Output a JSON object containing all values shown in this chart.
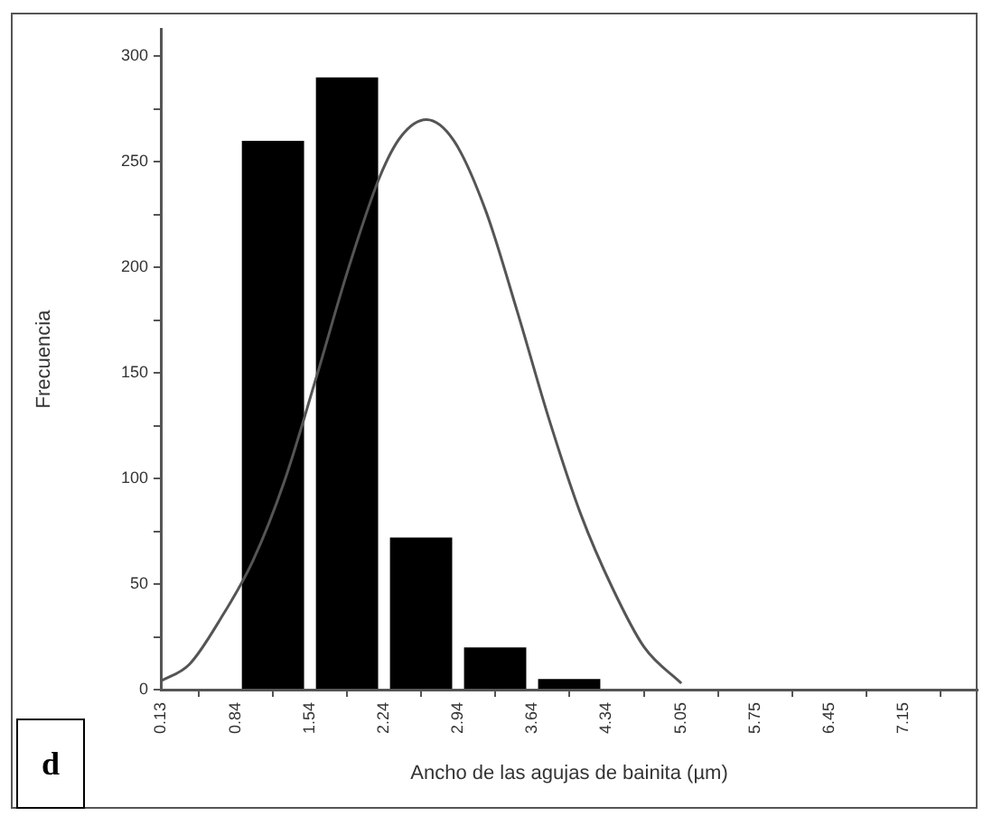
{
  "chart_data": {
    "type": "histogram",
    "xlabel": "Ancho de las agujas de bainita (µm)",
    "ylabel": "Frecuencia",
    "annotations": [
      "d"
    ],
    "series": [
      {
        "bins": [
          0.84,
          1.54,
          2.24,
          2.94,
          3.64,
          4.34
        ],
        "values": [
          260,
          290,
          72,
          20,
          5
        ],
        "color": "#000000"
      },
      {
        "type": "line",
        "color": "#555555",
        "x": [
          0.13,
          0.4,
          0.7,
          1.0,
          1.3,
          1.6,
          1.9,
          2.2,
          2.4,
          2.64,
          2.9,
          3.2,
          3.5,
          3.8,
          4.1,
          4.4,
          4.7,
          5.05
        ],
        "values": [
          4,
          12,
          34,
          61,
          99,
          148,
          199,
          243,
          262,
          270,
          260,
          227,
          179,
          128,
          83,
          48,
          20,
          3
        ]
      }
    ],
    "xlim": [
      0.13,
      7.85
    ],
    "xticks": [
      0.13,
      0.84,
      1.54,
      2.24,
      2.94,
      3.64,
      4.34,
      5.05,
      5.75,
      6.45,
      7.15
    ],
    "ylim": [
      0,
      313
    ],
    "yticks": [
      0,
      {
        "value": 25,
        "label": null
      },
      50,
      {
        "value": 75,
        "label": null
      },
      100,
      {
        "value": 125,
        "label": null
      },
      150,
      {
        "value": 175,
        "label": null
      },
      200,
      {
        "value": 225,
        "label": null
      },
      250,
      {
        "value": 275,
        "label": null
      },
      300
    ],
    "grid": false,
    "legend": false,
    "marker": "none",
    "line_style": "solid"
  }
}
